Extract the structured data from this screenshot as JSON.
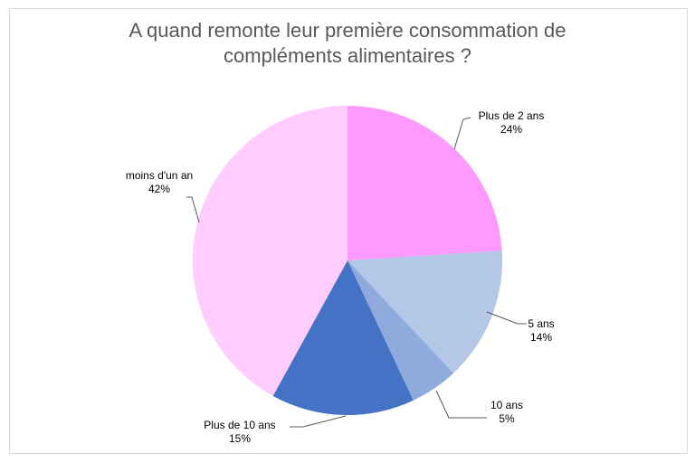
{
  "chart_data": {
    "type": "pie",
    "title": "A quand remonte leur première consommation de compléments alimentaires ?",
    "title_lines": [
      "A quand remonte leur première consommation de",
      "compléments alimentaires ?"
    ],
    "slices": [
      {
        "label": "Plus de 2 ans",
        "value": 24,
        "value_label": "24%",
        "color": "#ff99ff"
      },
      {
        "label": "5 ans",
        "value": 14,
        "value_label": "14%",
        "color": "#b4c7e7"
      },
      {
        "label": "10 ans",
        "value": 5,
        "value_label": "5%",
        "color": "#8faadc"
      },
      {
        "label": "Plus de 10 ans",
        "value": 15,
        "value_label": "15%",
        "color": "#4472c4"
      },
      {
        "label": "moins d'un an",
        "value": 42,
        "value_label": "42%",
        "color": "#ffccff"
      }
    ],
    "legend": "none",
    "data_labels": "outside with leader lines"
  }
}
